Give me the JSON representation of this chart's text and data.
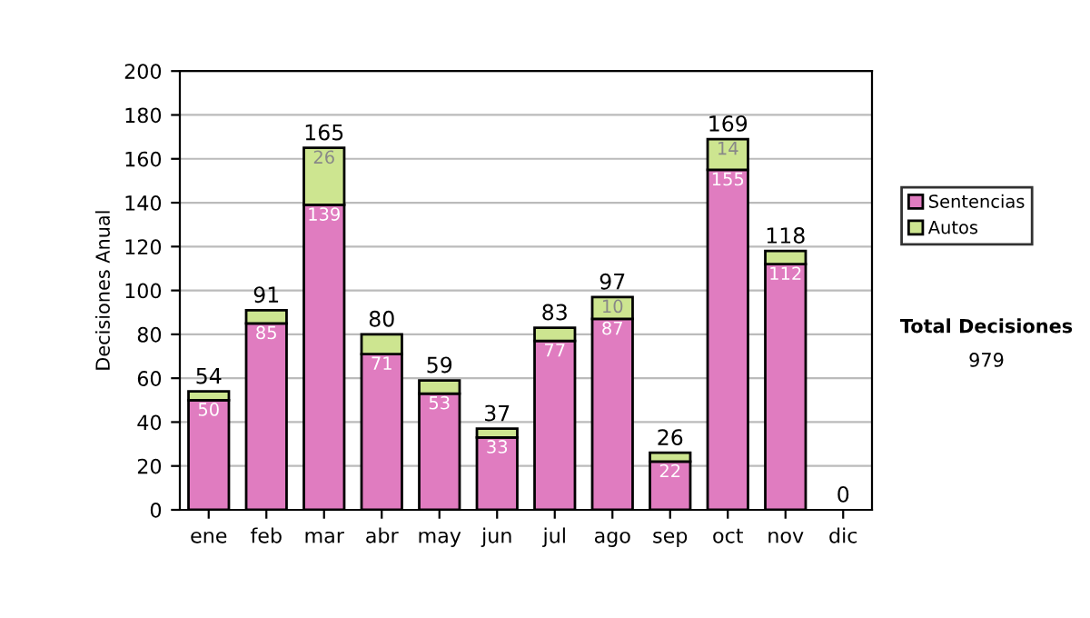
{
  "chart_data": {
    "type": "bar",
    "stacked": true,
    "ylabel": "Decisiones Anual",
    "categories": [
      "ene",
      "feb",
      "mar",
      "abr",
      "may",
      "jun",
      "jul",
      "ago",
      "sep",
      "oct",
      "nov",
      "dic"
    ],
    "series": [
      {
        "name": "Sentencias",
        "color": "#e07cc0",
        "values": [
          50,
          85,
          139,
          71,
          53,
          33,
          77,
          87,
          22,
          155,
          112,
          0
        ],
        "value_labels": [
          "50",
          "85",
          "139",
          "71",
          "53",
          "33",
          "77",
          "87",
          "22",
          "155",
          "112",
          null
        ]
      },
      {
        "name": "Autos",
        "color": "#cde590",
        "values": [
          4,
          6,
          26,
          9,
          6,
          4,
          6,
          10,
          4,
          14,
          6,
          0
        ],
        "value_labels": [
          null,
          null,
          "26",
          null,
          null,
          null,
          null,
          "10",
          null,
          "14",
          null,
          null
        ]
      }
    ],
    "totals": [
      "54",
      "91",
      "165",
      "80",
      "59",
      "37",
      "83",
      "97",
      "26",
      "169",
      "118",
      "0"
    ],
    "ylim": [
      0,
      200
    ],
    "yticks": [
      0,
      20,
      40,
      60,
      80,
      100,
      120,
      140,
      160,
      180,
      200
    ],
    "grid": "y",
    "legend": "right",
    "annotations": [
      "Total Decisiones",
      "979"
    ]
  }
}
